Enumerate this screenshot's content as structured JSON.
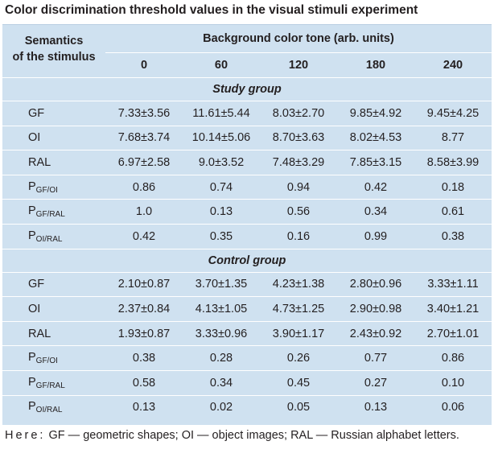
{
  "caption": "Color discrimination threshold values in the visual stimuli experiment",
  "header": {
    "semantics_line1": "Semantics",
    "semantics_line2": "of the stimulus",
    "background": "Background color tone (arb. units)",
    "tones": [
      "0",
      "60",
      "120",
      "180",
      "240"
    ]
  },
  "study": {
    "title": "Study group",
    "rows": [
      {
        "label": "GF",
        "sub": "",
        "values": [
          "7.33±3.56",
          "11.61±5.44",
          "8.03±2.70",
          "9.85±4.92",
          "9.45±4.25"
        ]
      },
      {
        "label": "OI",
        "sub": "",
        "values": [
          "7.68±3.74",
          "10.14±5.06",
          "8.70±3.63",
          "8.02±4.53",
          "8.77"
        ]
      },
      {
        "label": "RAL",
        "sub": "",
        "values": [
          "6.97±2.58",
          "9.0±3.52",
          "7.48±3.29",
          "7.85±3.15",
          "8.58±3.99"
        ]
      },
      {
        "label": "P",
        "sub": "GF/OI",
        "values": [
          "0.86",
          "0.74",
          "0.94",
          "0.42",
          "0.18"
        ]
      },
      {
        "label": "P",
        "sub": "GF/RAL",
        "values": [
          "1.0",
          "0.13",
          "0.56",
          "0.34",
          "0.61"
        ]
      },
      {
        "label": "P",
        "sub": "OI/RAL",
        "values": [
          "0.42",
          "0.35",
          "0.16",
          "0.99",
          "0.38"
        ]
      }
    ]
  },
  "control": {
    "title": "Control group",
    "rows": [
      {
        "label": "GF",
        "sub": "",
        "values": [
          "2.10±0.87",
          "3.70±1.35",
          "4.23±1.38",
          "2.80±0.96",
          "3.33±1.11"
        ]
      },
      {
        "label": "OI",
        "sub": "",
        "values": [
          "2.37±0.84",
          "4.13±1.05",
          "4.73±1.25",
          "2.90±0.98",
          "3.40±1.21"
        ]
      },
      {
        "label": "RAL",
        "sub": "",
        "values": [
          "1.93±0.87",
          "3.33±0.96",
          "3.90±1.17",
          "2.43±0.92",
          "2.70±1.01"
        ]
      },
      {
        "label": "P",
        "sub": "GF/OI",
        "values": [
          "0.38",
          "0.28",
          "0.26",
          "0.77",
          "0.86"
        ]
      },
      {
        "label": "P",
        "sub": "GF/RAL",
        "values": [
          "0.58",
          "0.34",
          "0.45",
          "0.27",
          "0.10"
        ]
      },
      {
        "label": "P",
        "sub": "OI/RAL",
        "values": [
          "0.13",
          "0.02",
          "0.05",
          "0.13",
          "0.06"
        ]
      }
    ]
  },
  "note": {
    "lead": "Here:",
    "text": " GF — geometric shapes; OI — object images; RAL — Russian alphabet letters."
  },
  "colors": {
    "table_background": "#cfe1f0",
    "row_separator": "#ffffff",
    "text": "#231f20"
  }
}
